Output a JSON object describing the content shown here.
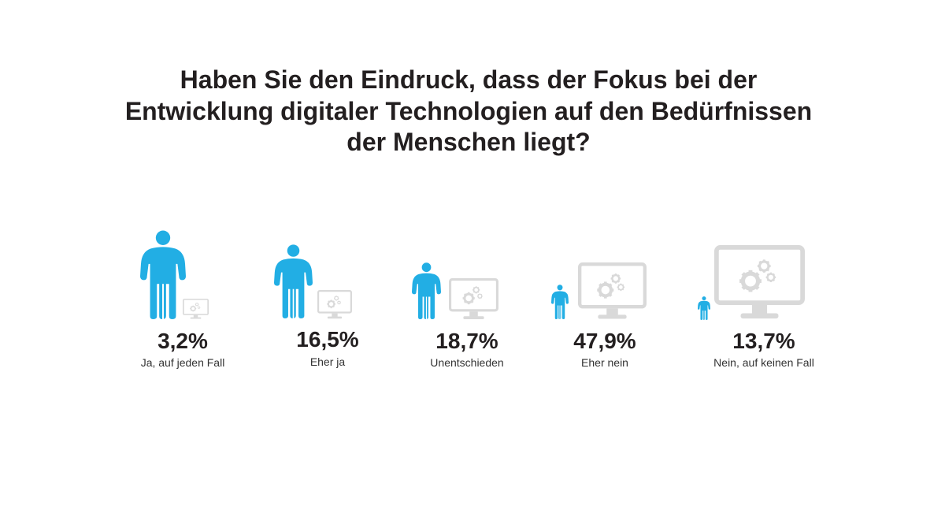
{
  "title": "Haben Sie den Eindruck, dass der Fokus bei der Entwicklung digitaler Technologien auf den Bedürfnissen der Menschen liegt?",
  "colors": {
    "person": "#22aee4",
    "monitor": "#d9d9d9",
    "text": "#231f20"
  },
  "chart_data": {
    "type": "bar",
    "title": "Haben Sie den Eindruck, dass der Fokus bei der Entwicklung digitaler Technologien auf den Bedürfnissen der Menschen liegt?",
    "categories": [
      "Ja, auf jeden Fall",
      "Eher ja",
      "Unentschieden",
      "Eher nein",
      "Nein, auf keinen Fall"
    ],
    "values": [
      3.2,
      16.5,
      18.7,
      47.9,
      13.7
    ],
    "value_labels": [
      "3,2%",
      "16,5%",
      "18,7%",
      "47,9%",
      "13,7%"
    ],
    "unit": "%"
  }
}
